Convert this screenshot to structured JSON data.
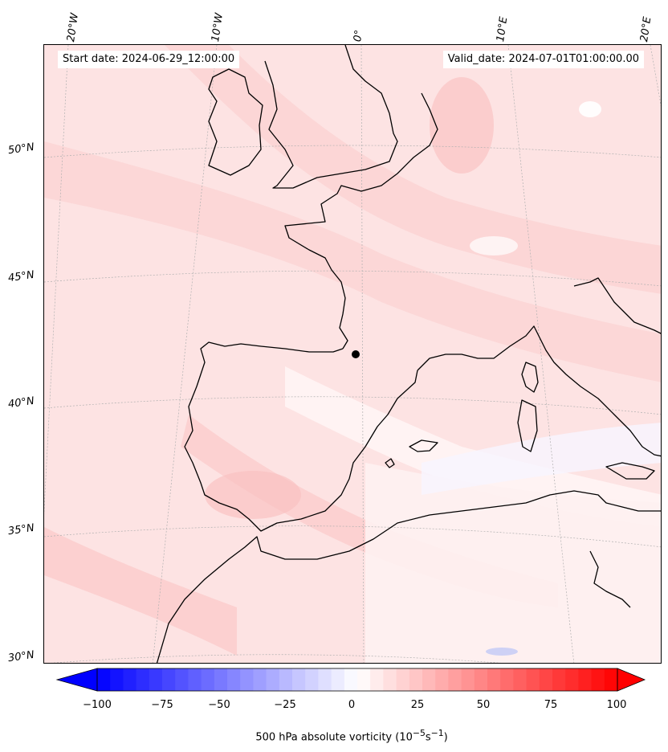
{
  "header": {
    "start_date": "Start date: 2024-06-29_12:00:00",
    "valid_date": "Valid_date: 2024-07-01T01:00:00.00"
  },
  "map": {
    "lon_labels": [
      "20°W",
      "10°W",
      "0°",
      "10°E",
      "20°E"
    ],
    "lat_labels": [
      "50°N",
      "45°N",
      "40°N",
      "35°N",
      "30°N"
    ],
    "coastline_color": "#000000",
    "gridline_color": "#b0b0b0"
  },
  "colorbar": {
    "ticks": [
      "−100",
      "−75",
      "−50",
      "−25",
      "0",
      "25",
      "50",
      "75",
      "100"
    ],
    "label": "500 hPa absolute vorticity (10",
    "label_exp1": "−5",
    "label_mid": "s",
    "label_exp2": "−1",
    "label_end": ")",
    "min": -100,
    "max": 100,
    "negative_color": "#0000ff",
    "positive_color": "#ff0000",
    "neutral_color": "#ffffff"
  }
}
